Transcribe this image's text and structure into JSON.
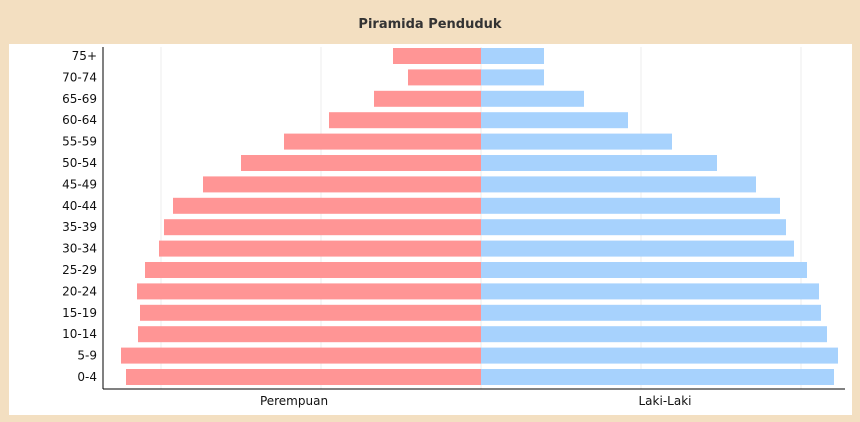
{
  "title": "Piramida Penduduk",
  "colors": {
    "female": "#ff9595",
    "male": "#a7d2fd",
    "background": "#f3dfc1"
  },
  "chart_data": {
    "type": "bar",
    "orientation": "horizontal",
    "title": "Piramida Penduduk",
    "categories": [
      "75+",
      "70-74",
      "65-69",
      "60-64",
      "55-59",
      "50-54",
      "45-49",
      "40-44",
      "35-39",
      "30-34",
      "25-29",
      "20-24",
      "15-19",
      "10-14",
      "5-9",
      "0-4"
    ],
    "series": [
      {
        "name": "Perempuan",
        "values": [
          88,
          73,
          107,
          152,
          197,
          240,
          278,
          308,
          317,
          322,
          336,
          344,
          341,
          343,
          360,
          355
        ]
      },
      {
        "name": "Laki-Laki",
        "values": [
          63,
          63,
          103,
          147,
          191,
          236,
          275,
          299,
          305,
          313,
          326,
          338,
          340,
          346,
          357,
          353
        ]
      }
    ],
    "grid": true,
    "gridlines_at": [
      -320,
      -160,
      0,
      160,
      320
    ],
    "xlim": [
      -360,
      360
    ],
    "legend": "below-axis"
  }
}
